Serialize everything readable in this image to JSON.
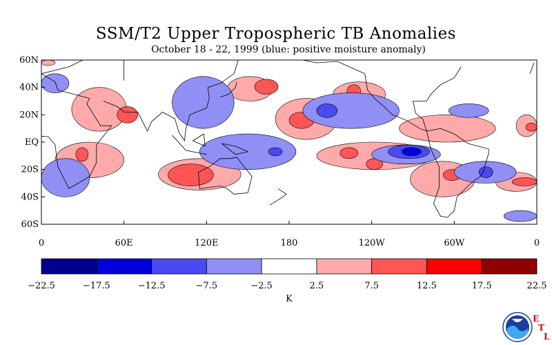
{
  "title": "SSM/T2 Upper Tropospheric TB Anomalies",
  "subtitle": "October 18 - 22, 1999 (blue: positive moisture anomaly)",
  "chart_data": {
    "type": "heatmap",
    "title": "SSM/T2 Upper Tropospheric TB Anomalies",
    "subtitle": "October 18 - 22, 1999 (blue: positive moisture anomaly)",
    "x_ticks": [
      "0",
      "60E",
      "120E",
      "180",
      "120W",
      "60W",
      "0"
    ],
    "y_ticks": [
      "60N",
      "40N",
      "20N",
      "EQ",
      "20S",
      "40S",
      "60S"
    ],
    "xlim": [
      0,
      360
    ],
    "ylim": [
      -60,
      60
    ],
    "colorbar": {
      "unit": "K",
      "boundaries": [
        "-22.5",
        "-17.5",
        "-12.5",
        "-7.5",
        "-2.5",
        "2.5",
        "7.5",
        "12.5",
        "17.5",
        "22.5"
      ],
      "colors": [
        "#00008f",
        "#0000dd",
        "#4a4af0",
        "#8f8ff5",
        "#ffffff",
        "#ffaaaa",
        "#ff5555",
        "#ff0000",
        "#8f0000"
      ]
    },
    "anomaly_regions": [
      {
        "level": 1,
        "lon": [
          0,
          10
        ],
        "lat": [
          56,
          60
        ]
      },
      {
        "level": 1,
        "lon": [
          22,
          62
        ],
        "lat": [
          8,
          40
        ]
      },
      {
        "level": 2,
        "lon": [
          55,
          70
        ],
        "lat": [
          14,
          26
        ]
      },
      {
        "level": 1,
        "lon": [
          135,
          168
        ],
        "lat": [
          30,
          48
        ]
      },
      {
        "level": 2,
        "lon": [
          155,
          172
        ],
        "lat": [
          35,
          46
        ]
      },
      {
        "level": 1,
        "lon": [
          170,
          215
        ],
        "lat": [
          2,
          32
        ]
      },
      {
        "level": 2,
        "lon": [
          180,
          198
        ],
        "lat": [
          10,
          22
        ]
      },
      {
        "level": 1,
        "lon": [
          212,
          250
        ],
        "lat": [
          26,
          44
        ]
      },
      {
        "level": 2,
        "lon": [
          222,
          232
        ],
        "lat": [
          32,
          42
        ]
      },
      {
        "level": 1,
        "lon": [
          200,
          285
        ],
        "lat": [
          -20,
          0
        ]
      },
      {
        "level": 2,
        "lon": [
          217,
          230
        ],
        "lat": [
          -12,
          -4
        ]
      },
      {
        "level": 2,
        "lon": [
          236,
          248
        ],
        "lat": [
          -20,
          -12
        ]
      },
      {
        "level": 1,
        "lon": [
          260,
          330
        ],
        "lat": [
          0,
          20
        ]
      },
      {
        "level": 1,
        "lon": [
          85,
          145
        ],
        "lat": [
          -35,
          -12
        ]
      },
      {
        "level": 2,
        "lon": [
          92,
          125
        ],
        "lat": [
          -32,
          -16
        ]
      },
      {
        "level": 1,
        "lon": [
          10,
          60
        ],
        "lat": [
          -26,
          0
        ]
      },
      {
        "level": 2,
        "lon": [
          25,
          34
        ],
        "lat": [
          -14,
          -4
        ]
      },
      {
        "level": 1,
        "lon": [
          268,
          315
        ],
        "lat": [
          -40,
          -14
        ]
      },
      {
        "level": 2,
        "lon": [
          292,
          305
        ],
        "lat": [
          -28,
          -20
        ]
      },
      {
        "level": 1,
        "lon": [
          330,
          360
        ],
        "lat": [
          -36,
          -22
        ]
      },
      {
        "level": 2,
        "lon": [
          342,
          360
        ],
        "lat": [
          -32,
          -26
        ]
      },
      {
        "level": 1,
        "lon": [
          345,
          360
        ],
        "lat": [
          4,
          20
        ]
      },
      {
        "level": 2,
        "lon": [
          352,
          360
        ],
        "lat": [
          8,
          14
        ]
      },
      {
        "level": -1,
        "lon": [
          0,
          35
        ],
        "lat": [
          -40,
          -12
        ]
      },
      {
        "level": -1,
        "lon": [
          0,
          20
        ],
        "lat": [
          36,
          50
        ]
      },
      {
        "level": -1,
        "lon": [
          95,
          140
        ],
        "lat": [
          10,
          48
        ]
      },
      {
        "level": -1,
        "lon": [
          115,
          185
        ],
        "lat": [
          -20,
          6
        ]
      },
      {
        "level": -2,
        "lon": [
          165,
          175
        ],
        "lat": [
          -10,
          -4
        ]
      },
      {
        "level": -1,
        "lon": [
          190,
          260
        ],
        "lat": [
          10,
          36
        ]
      },
      {
        "level": -2,
        "lon": [
          200,
          215
        ],
        "lat": [
          18,
          28
        ]
      },
      {
        "level": -1,
        "lon": [
          240,
          290
        ],
        "lat": [
          -16,
          -2
        ]
      },
      {
        "level": -2,
        "lon": [
          252,
          282
        ],
        "lat": [
          -12,
          -2
        ]
      },
      {
        "level": -3,
        "lon": [
          262,
          276
        ],
        "lat": [
          -10,
          -4
        ]
      },
      {
        "level": -1,
        "lon": [
          300,
          345
        ],
        "lat": [
          -30,
          -14
        ]
      },
      {
        "level": -2,
        "lon": [
          318,
          328
        ],
        "lat": [
          -26,
          -18
        ]
      },
      {
        "level": -1,
        "lon": [
          296,
          325
        ],
        "lat": [
          18,
          28
        ]
      },
      {
        "level": -1,
        "lon": [
          336,
          360
        ],
        "lat": [
          -58,
          -50
        ]
      }
    ]
  }
}
